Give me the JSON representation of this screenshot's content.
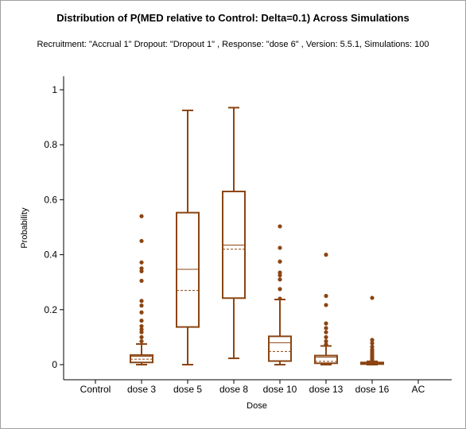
{
  "chart_data": {
    "type": "box",
    "title": "Distribution of P(MED relative to Control: Delta=0.1) Across Simulations",
    "subtitle": "Recruitment: \"Accrual 1\" Dropout: \"Dropout 1\" , Response: \"dose 6\" , Version: 5.5.1, Simulations: 100",
    "xlabel": "Dose",
    "ylabel": "Probability",
    "ylim": [
      0,
      1
    ],
    "yticks": [
      0,
      0.2,
      0.4,
      0.6,
      0.8,
      1
    ],
    "ytick_labels": [
      "0",
      "0.2",
      "0.4",
      "0.6",
      "0.8",
      "1"
    ],
    "categories": [
      "Control",
      "dose 3",
      "dose 5",
      "dose 8",
      "dose 10",
      "dose 13",
      "dose 16",
      "AC"
    ],
    "color": "#8b4513",
    "boxes": [
      null,
      {
        "min": 0.0,
        "q1": 0.008,
        "median": 0.03,
        "mean": 0.02,
        "q3": 0.035,
        "max": 0.075,
        "outliers": [
          0.54,
          0.45,
          0.372,
          0.35,
          0.34,
          0.305,
          0.232,
          0.215,
          0.19,
          0.16,
          0.14,
          0.128,
          0.118,
          0.1,
          0.085
        ]
      },
      {
        "min": 0.0,
        "q1": 0.137,
        "median": 0.347,
        "mean": 0.27,
        "q3": 0.553,
        "max": 0.925,
        "outliers": []
      },
      {
        "min": 0.023,
        "q1": 0.242,
        "median": 0.435,
        "mean": 0.42,
        "q3": 0.63,
        "max": 0.935,
        "outliers": []
      },
      {
        "min": 0.0,
        "q1": 0.013,
        "median": 0.08,
        "mean": 0.048,
        "q3": 0.103,
        "max": 0.237,
        "outliers": [
          0.503,
          0.425,
          0.375,
          0.335,
          0.325,
          0.31,
          0.275,
          0.24
        ]
      },
      {
        "min": 0.0,
        "q1": 0.005,
        "median": 0.027,
        "mean": 0.012,
        "q3": 0.033,
        "max": 0.068,
        "outliers": [
          0.4,
          0.25,
          0.217,
          0.15,
          0.133,
          0.118,
          0.1,
          0.085,
          0.073
        ]
      },
      {
        "min": 0.0,
        "q1": 0.002,
        "median": 0.005,
        "mean": 0.004,
        "q3": 0.008,
        "max": 0.012,
        "outliers": [
          0.243,
          0.09,
          0.078,
          0.065,
          0.055,
          0.048,
          0.042,
          0.036,
          0.03,
          0.025,
          0.02,
          0.015
        ]
      },
      null
    ]
  }
}
